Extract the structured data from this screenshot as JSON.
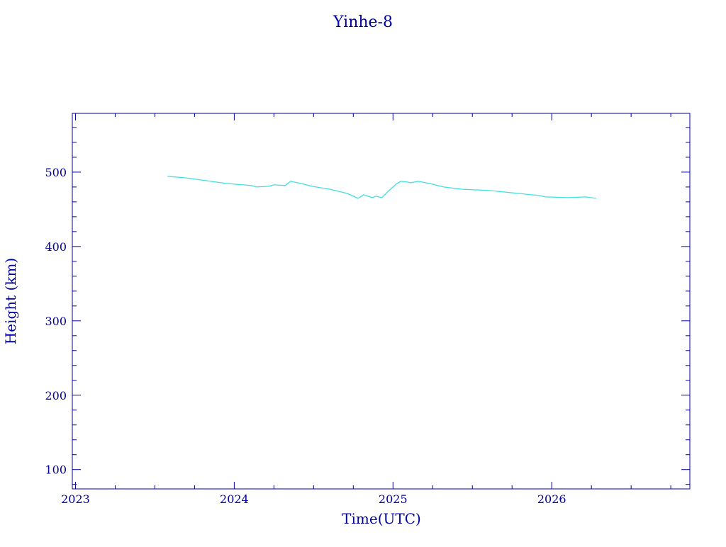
{
  "chart_data": {
    "type": "line",
    "title": "Yinhe-8",
    "xlabel": "Time(UTC)",
    "ylabel": "Height (km)",
    "xlim": [
      2022.98,
      2026.87
    ],
    "ylim": [
      74,
      579
    ],
    "x_ticks": [
      2023,
      2024,
      2025,
      2026
    ],
    "x_tick_labels": [
      "2023",
      "2024",
      "2025",
      "2026"
    ],
    "y_ticks": [
      100,
      200,
      300,
      400,
      500
    ],
    "y_tick_labels": [
      "100",
      "200",
      "300",
      "400",
      "500"
    ],
    "grid": false,
    "axis_color": "#0000a0",
    "series": [
      {
        "color": "#40e0e0",
        "x": [
          2023.58,
          2023.69,
          2023.82,
          2023.95,
          2024.11,
          2024.14,
          2024.22,
          2024.25,
          2024.32,
          2024.355,
          2024.42,
          2024.49,
          2024.6,
          2024.71,
          2024.78,
          2024.815,
          2024.87,
          2024.89,
          2024.93,
          2024.97,
          2025.025,
          2025.05,
          2025.09,
          2025.11,
          2025.16,
          2025.23,
          2025.32,
          2025.43,
          2025.61,
          2025.74,
          2025.92,
          2025.96,
          2026.1,
          2026.21,
          2026.28
        ],
        "y": [
          494.3,
          492.4,
          488.6,
          484.8,
          481.9,
          480.0,
          481.0,
          482.9,
          482.0,
          487.6,
          484.8,
          481.0,
          477.0,
          471.4,
          464.8,
          469.5,
          465.7,
          467.6,
          465.7,
          474.3,
          484.8,
          487.6,
          486.7,
          485.7,
          487.6,
          484.8,
          480.0,
          477.0,
          475.2,
          472.4,
          468.6,
          466.7,
          465.7,
          466.7,
          464.8
        ]
      }
    ]
  }
}
